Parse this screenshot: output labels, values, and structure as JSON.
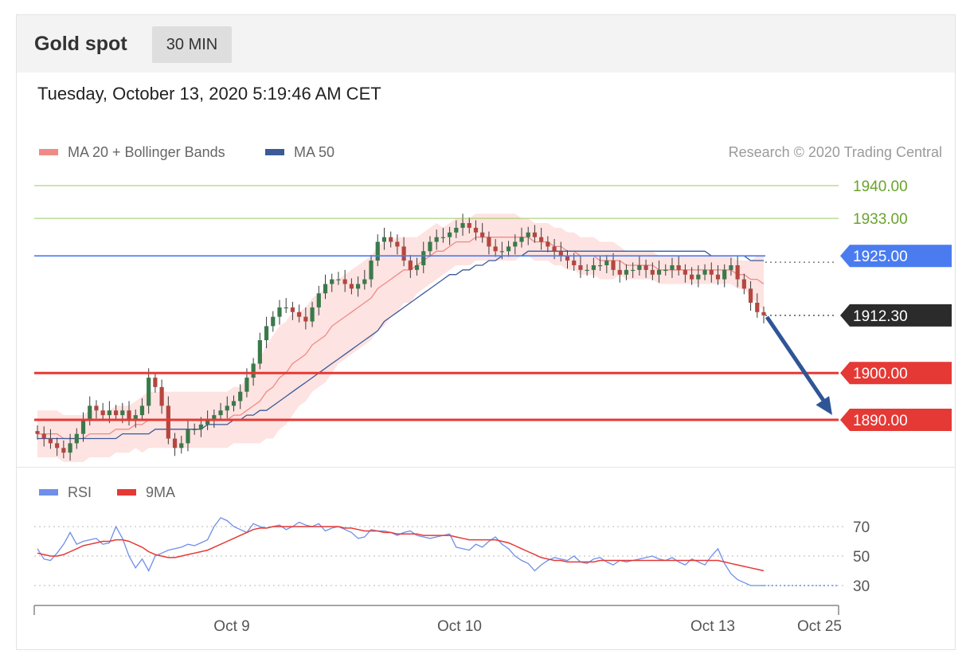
{
  "header": {
    "title": "Gold spot",
    "interval": "30 MIN"
  },
  "timestamp": "Tuesday, October 13, 2020 5:19:46 AM CET",
  "legend": [
    {
      "label": "MA 20 + Bollinger Bands",
      "color": "#f08a87"
    },
    {
      "label": "MA 50",
      "color": "#3c5a9a"
    }
  ],
  "copyright": "Research © 2020 Trading Central",
  "rsi_legend": [
    {
      "label": "RSI",
      "color": "#6f8fe8"
    },
    {
      "label": "9MA",
      "color": "#e53935"
    }
  ],
  "colors": {
    "up_candle": "#3a7a4a",
    "down_candle": "#b5463f",
    "band_fill": "#fde3e1",
    "resistance": "#8bc34a",
    "pivot": "#4a7cf0",
    "support": "#e53935",
    "last_price": "#2b2b2b",
    "forecast_arrow": "#2f5596"
  },
  "chart_data": [
    {
      "type": "candlestick",
      "title": "",
      "x_tick_labels": [
        "Oct 9",
        "Oct 10",
        "Oct 13",
        "Oct 25"
      ],
      "ylim": [
        1865,
        1945
      ],
      "grid": false,
      "legend_position": "top-left",
      "price_levels": [
        {
          "value": 1940.0,
          "label": "1940.00",
          "kind": "resistance"
        },
        {
          "value": 1933.0,
          "label": "1933.00",
          "kind": "resistance"
        },
        {
          "value": 1925.0,
          "label": "1925.00",
          "kind": "pivot"
        },
        {
          "value": 1912.3,
          "label": "1912.30",
          "kind": "last"
        },
        {
          "value": 1900.0,
          "label": "1900.00",
          "kind": "support"
        },
        {
          "value": 1890.0,
          "label": "1890.00",
          "kind": "support"
        }
      ],
      "closes": [
        1887,
        1886,
        1885,
        1884,
        1883,
        1885,
        1887,
        1890,
        1893,
        1892,
        1891,
        1892,
        1891,
        1892,
        1890,
        1891,
        1893,
        1899,
        1897,
        1893,
        1886,
        1884,
        1885,
        1888,
        1888,
        1889,
        1890,
        1891,
        1892,
        1893,
        1894,
        1896,
        1899,
        1902,
        1907,
        1910,
        1912,
        1914,
        1914,
        1913,
        1912,
        1911,
        1914,
        1917,
        1919,
        1920,
        1920,
        1919,
        1918,
        1919,
        1920,
        1924,
        1928,
        1929,
        1928,
        1927,
        1924,
        1922,
        1923,
        1926,
        1928,
        1929,
        1929,
        1930,
        1931,
        1932,
        1931,
        1930,
        1929,
        1927,
        1926,
        1926,
        1927,
        1928,
        1929,
        1930,
        1929,
        1928,
        1927,
        1926,
        1925,
        1924,
        1923,
        1922,
        1922,
        1923,
        1923,
        1924,
        1922,
        1921,
        1922,
        1922,
        1923,
        1922,
        1921,
        1922,
        1922,
        1923,
        1922,
        1921,
        1920,
        1921,
        1922,
        1921,
        1920,
        1922,
        1923,
        1920,
        1918,
        1915,
        1913,
        1912.3
      ],
      "ma20": [
        1887,
        1887,
        1887,
        1887,
        1886,
        1886,
        1886,
        1886,
        1887,
        1887,
        1887,
        1887,
        1888,
        1888,
        1888,
        1889,
        1889,
        1890,
        1890,
        1890,
        1890,
        1890,
        1890,
        1890,
        1890,
        1890,
        1890,
        1890,
        1890,
        1890,
        1891,
        1891,
        1892,
        1893,
        1894,
        1896,
        1897,
        1899,
        1900,
        1902,
        1903,
        1904,
        1906,
        1907,
        1908,
        1910,
        1911,
        1912,
        1913,
        1914,
        1915,
        1916,
        1918,
        1919,
        1920,
        1921,
        1922,
        1922,
        1923,
        1924,
        1925,
        1926,
        1926,
        1927,
        1928,
        1928,
        1928,
        1929,
        1929,
        1929,
        1929,
        1929,
        1929,
        1929,
        1929,
        1929,
        1928,
        1928,
        1928,
        1927,
        1927,
        1926,
        1926,
        1925,
        1925,
        1925,
        1924,
        1924,
        1924,
        1924,
        1923,
        1923,
        1923,
        1923,
        1923,
        1922,
        1922,
        1922,
        1922,
        1922,
        1922,
        1922,
        1922,
        1922,
        1922,
        1922,
        1922,
        1921,
        1921,
        1920,
        1920,
        1919
      ],
      "ma50": [
        1886,
        1886,
        1886,
        1886,
        1886,
        1886,
        1886,
        1886,
        1886,
        1886,
        1886,
        1886,
        1886,
        1887,
        1887,
        1887,
        1887,
        1887,
        1888,
        1888,
        1888,
        1888,
        1888,
        1888,
        1888,
        1888,
        1889,
        1889,
        1889,
        1889,
        1890,
        1890,
        1891,
        1891,
        1892,
        1892,
        1893,
        1894,
        1895,
        1896,
        1897,
        1898,
        1899,
        1900,
        1901,
        1902,
        1903,
        1904,
        1905,
        1906,
        1907,
        1908,
        1909,
        1911,
        1912,
        1913,
        1914,
        1915,
        1916,
        1917,
        1918,
        1919,
        1920,
        1921,
        1921,
        1922,
        1922,
        1923,
        1923,
        1924,
        1924,
        1925,
        1925,
        1925,
        1925,
        1926,
        1926,
        1926,
        1926,
        1926,
        1926,
        1926,
        1926,
        1926,
        1926,
        1926,
        1926,
        1926,
        1926,
        1926,
        1926,
        1926,
        1926,
        1926,
        1926,
        1926,
        1926,
        1926,
        1926,
        1926,
        1926,
        1926,
        1926,
        1925,
        1925,
        1925,
        1925,
        1925,
        1925,
        1924,
        1924,
        1924
      ],
      "band_width": [
        5,
        5,
        5,
        5,
        5,
        5,
        5,
        5,
        5,
        5,
        5,
        5,
        5,
        5,
        5,
        5,
        6,
        6,
        6,
        6,
        6,
        6,
        6,
        6,
        6,
        6,
        6,
        6,
        6,
        6,
        6,
        6,
        7,
        8,
        9,
        10,
        11,
        11,
        11,
        11,
        10,
        10,
        10,
        10,
        10,
        10,
        9,
        9,
        9,
        9,
        9,
        9,
        9,
        9,
        8,
        8,
        7,
        7,
        6,
        6,
        6,
        6,
        5,
        5,
        5,
        5,
        5,
        5,
        5,
        5,
        5,
        5,
        5,
        5,
        4,
        4,
        4,
        4,
        4,
        4,
        4,
        4,
        4,
        4,
        4,
        4,
        4,
        4,
        4,
        3,
        3,
        3,
        3,
        3,
        3,
        3,
        3,
        3,
        3,
        3,
        3,
        3,
        3,
        3,
        3,
        3,
        3,
        3,
        3,
        4,
        5,
        6
      ]
    },
    {
      "type": "line",
      "title": "",
      "series": [
        {
          "name": "RSI",
          "values": [
            55,
            48,
            47,
            52,
            58,
            66,
            58,
            60,
            61,
            62,
            58,
            59,
            70,
            62,
            50,
            42,
            48,
            40,
            50,
            52,
            54,
            55,
            56,
            58,
            57,
            59,
            61,
            70,
            76,
            74,
            70,
            68,
            66,
            72,
            70,
            69,
            70,
            71,
            68,
            70,
            73,
            71,
            70,
            72,
            67,
            69,
            70,
            68,
            66,
            62,
            63,
            68,
            67,
            67,
            66,
            64,
            66,
            67,
            64,
            63,
            62,
            63,
            64,
            65,
            56,
            55,
            54,
            58,
            56,
            60,
            63,
            58,
            55,
            50,
            47,
            45,
            40,
            44,
            47,
            49,
            48,
            47,
            50,
            46,
            45,
            48,
            49,
            46,
            44,
            47,
            46,
            47,
            48,
            49,
            50,
            48,
            47,
            49,
            46,
            44,
            48,
            46,
            44,
            50,
            55,
            45,
            38,
            34,
            32,
            30,
            30,
            30
          ]
        },
        {
          "name": "9MA",
          "values": [
            52,
            51,
            50,
            50,
            51,
            53,
            55,
            57,
            58,
            59,
            60,
            60,
            61,
            61,
            60,
            58,
            56,
            53,
            51,
            50,
            49,
            49,
            50,
            51,
            52,
            53,
            54,
            56,
            58,
            60,
            62,
            64,
            66,
            68,
            69,
            69,
            70,
            70,
            70,
            70,
            70,
            70,
            70,
            70,
            70,
            70,
            70,
            69,
            69,
            68,
            67,
            67,
            67,
            66,
            66,
            65,
            65,
            65,
            65,
            64,
            64,
            64,
            64,
            64,
            63,
            62,
            61,
            61,
            61,
            61,
            61,
            60,
            59,
            57,
            55,
            53,
            51,
            49,
            48,
            47,
            47,
            46,
            46,
            46,
            46,
            46,
            47,
            47,
            47,
            47,
            47,
            47,
            47,
            47,
            47,
            47,
            47,
            47,
            47,
            47,
            47,
            47,
            47,
            47,
            47,
            46,
            45,
            44,
            43,
            42,
            41,
            40
          ]
        }
      ],
      "ylim": [
        25,
        80
      ],
      "y_ticks": [
        "70",
        "50",
        "30"
      ],
      "grid": true,
      "legend_position": "top-left"
    }
  ]
}
